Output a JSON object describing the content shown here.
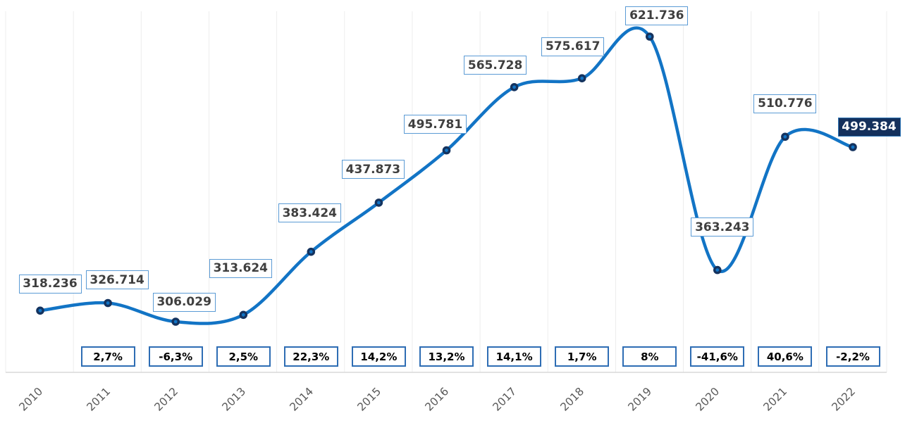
{
  "chart_data": {
    "type": "line",
    "title": "",
    "xlabel": "",
    "ylabel": "",
    "legend": "none",
    "grid": "vertical-only",
    "categories": [
      "2010",
      "2011",
      "2012",
      "2013",
      "2014",
      "2015",
      "2016",
      "2017",
      "2018",
      "2019",
      "2020",
      "2021",
      "2022"
    ],
    "series": [
      {
        "name": "annual-value",
        "values": [
          318236,
          326714,
          306029,
          313624,
          383424,
          437873,
          495781,
          565728,
          575617,
          621736,
          363243,
          510776,
          499384
        ]
      }
    ],
    "point_labels": [
      "318.236",
      "326.714",
      "306.029",
      "313.624",
      "383.424",
      "437.873",
      "495.781",
      "565.728",
      "575.617",
      "621.736",
      "363.243",
      "510.776",
      "499.384"
    ],
    "highlighted_point_index": 12,
    "highlighted_point_label": "499.384",
    "change_labels": [
      "2,7%",
      "-6,3%",
      "2,5%",
      "22,3%",
      "14,2%",
      "13,2%",
      "14,1%",
      "1,7%",
      "8%",
      "-41,6%",
      "40,6%",
      "-2,2%"
    ],
    "ylim": [
      290000,
      640000
    ]
  },
  "colors": {
    "line": "#1274C5",
    "marker_ring": "#14335F",
    "marker_core": "#1274C5",
    "label_border": "#5B9BD5",
    "label_text": "#3F3F3F",
    "highlight_background": "#14305C",
    "highlight_text": "#FFFFFF",
    "pct_border": "#2E6DB4",
    "pct_text": "#000000",
    "year_text": "#595959",
    "gridline": "#EDEDED",
    "axis_line": "#D9D9D9"
  }
}
